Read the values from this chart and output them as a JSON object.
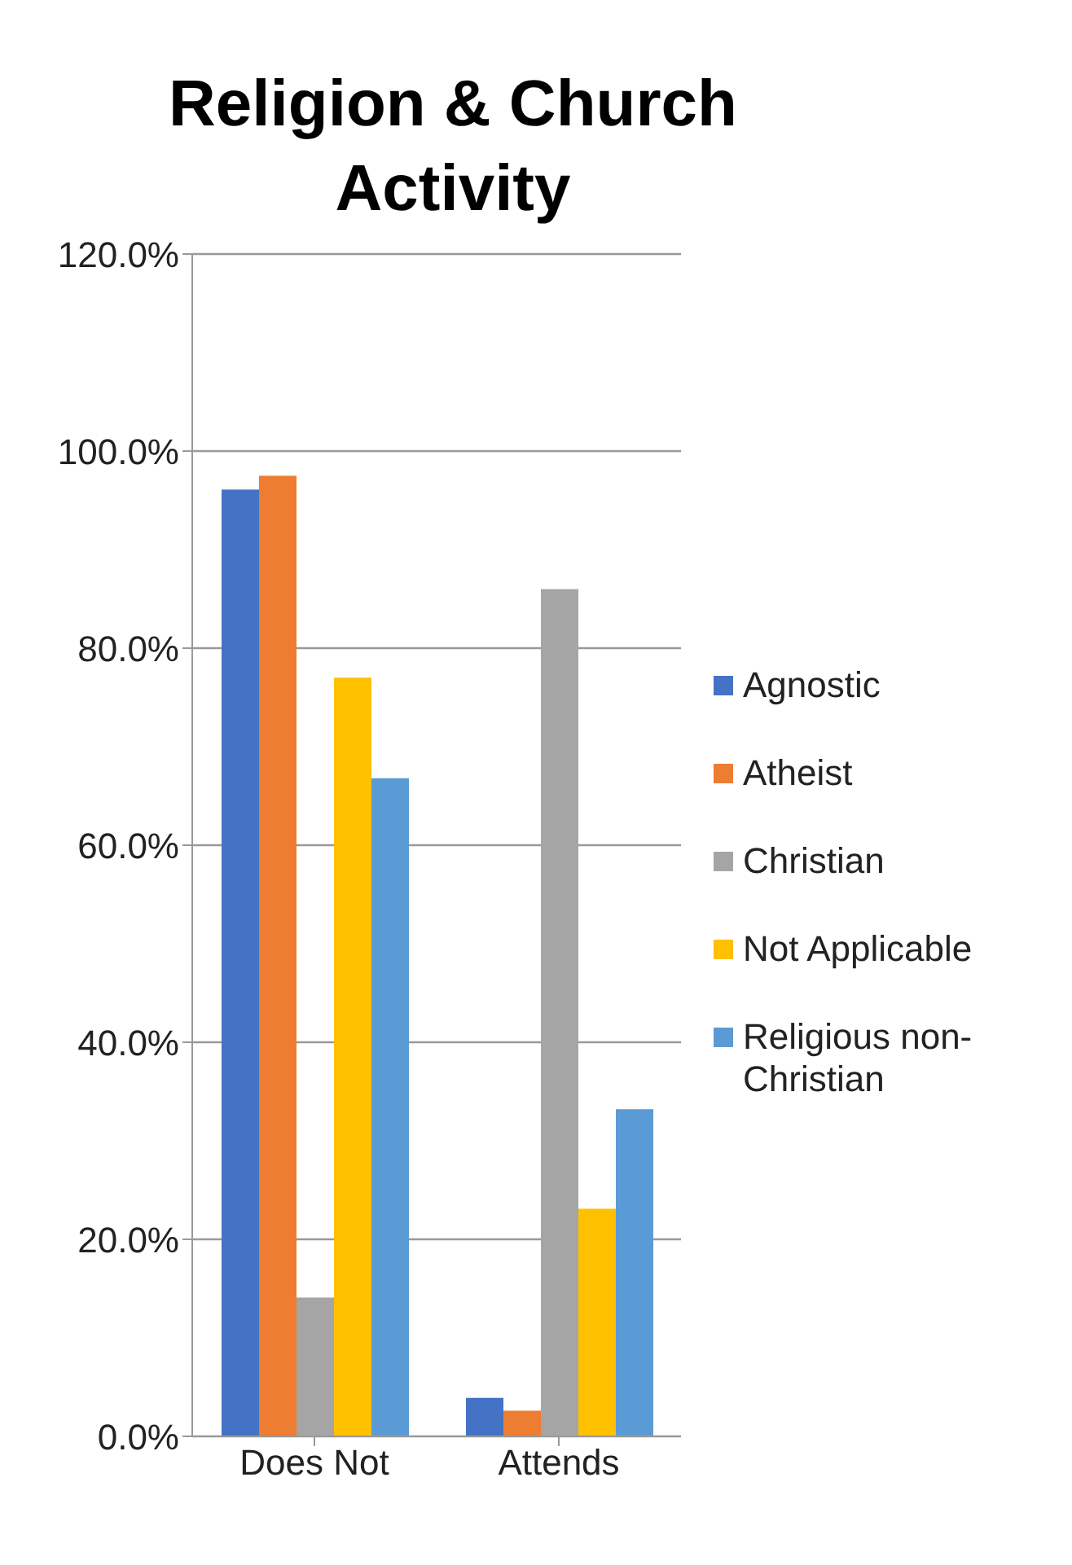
{
  "chart_data": {
    "type": "bar",
    "title": "Religion & Church Activity",
    "categories": [
      "Does Not",
      "Attends"
    ],
    "series": [
      {
        "name": "Agnostic",
        "color": "#4472c4",
        "values": [
          96.1,
          3.9
        ]
      },
      {
        "name": "Atheist",
        "color": "#ed7d31",
        "values": [
          97.5,
          2.6
        ]
      },
      {
        "name": "Christian",
        "color": "#a5a5a5",
        "values": [
          14.1,
          86.0
        ]
      },
      {
        "name": "Not Applicable",
        "color": "#ffc000",
        "values": [
          77.0,
          23.1
        ]
      },
      {
        "name": "Religious non-Christian",
        "color": "#5b9bd5",
        "values": [
          66.8,
          33.2
        ]
      }
    ],
    "ylim": [
      0,
      120
    ],
    "yticks": [
      {
        "value": 0,
        "label": "0.0%"
      },
      {
        "value": 20,
        "label": "20.0%"
      },
      {
        "value": 40,
        "label": "40.0%"
      },
      {
        "value": 60,
        "label": "60.0%"
      },
      {
        "value": 80,
        "label": "80.0%"
      },
      {
        "value": 100,
        "label": "100.0%"
      },
      {
        "value": 120,
        "label": "120.0%"
      }
    ],
    "grid": "y",
    "legend": "right"
  }
}
